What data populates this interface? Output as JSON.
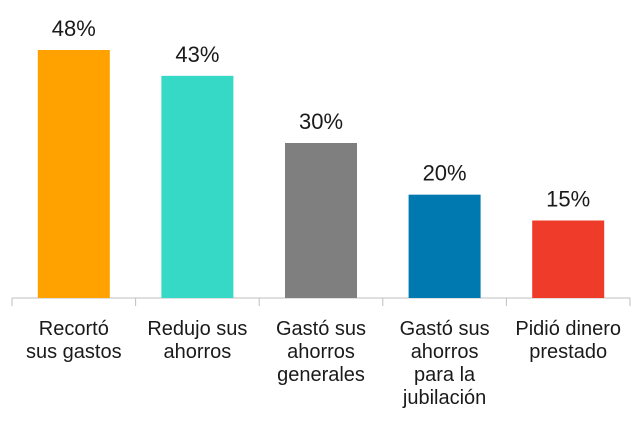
{
  "chart_data": {
    "type": "bar",
    "categories": [
      "Recortó\nsus gastos",
      "Redujo sus\nahorros",
      "Gastó sus\nahorros\ngenerales",
      "Gastó sus\nahorros\npara la\njubilación",
      "Pidió dinero\nprestado"
    ],
    "values": [
      48,
      43,
      30,
      20,
      15
    ],
    "value_labels": [
      "48%",
      "43%",
      "30%",
      "20%",
      "15%"
    ],
    "colors": [
      "#ffa200",
      "#35d9c6",
      "#7f7f7f",
      "#0078b0",
      "#ee3b2a"
    ]
  }
}
